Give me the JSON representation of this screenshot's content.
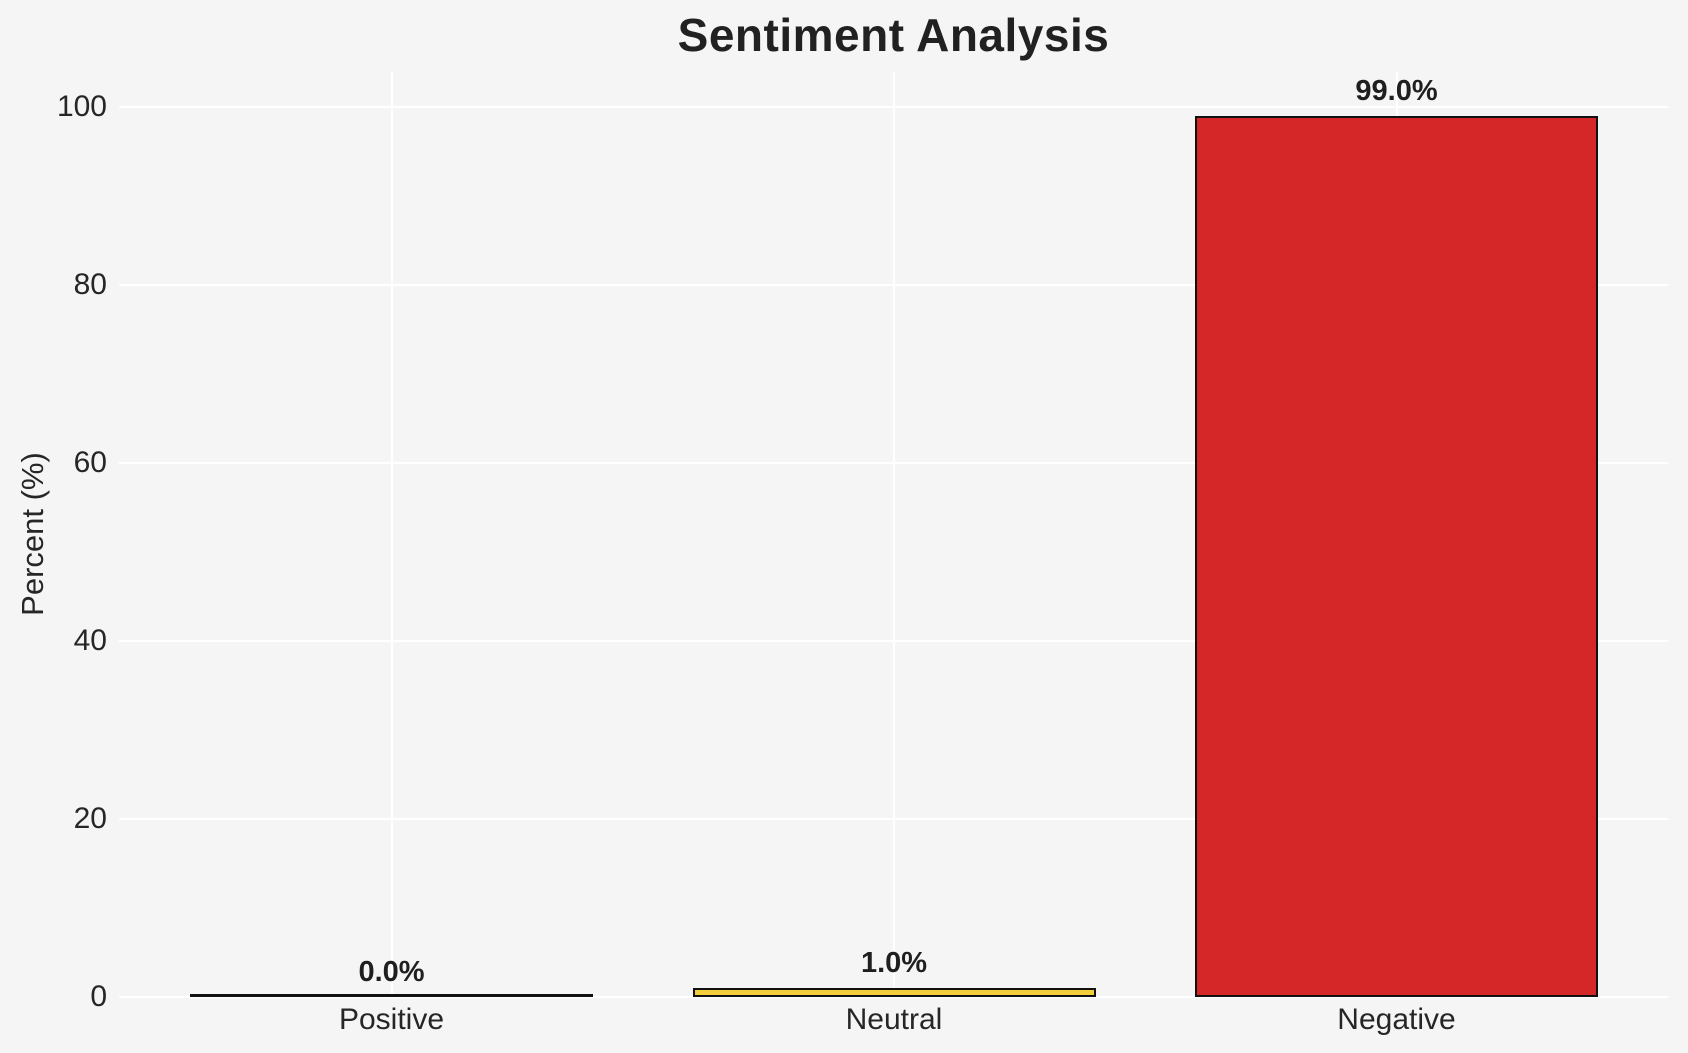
{
  "chart_data": {
    "type": "bar",
    "title": "Sentiment Analysis",
    "ylabel": "Percent (%)",
    "xlabel": "",
    "categories": [
      "Positive",
      "Neutral",
      "Negative"
    ],
    "values": [
      0.0,
      1.0,
      99.0
    ],
    "value_labels": [
      "0.0%",
      "1.0%",
      "99.0%"
    ],
    "bar_colors": [
      "#2ca02c",
      "#f3ce3a",
      "#d62728"
    ],
    "bar_edge_color": "#111111",
    "yticks": [
      0,
      20,
      40,
      60,
      80,
      100
    ],
    "ylim": [
      0,
      103.95
    ],
    "grid": true,
    "legend": false,
    "background_color": "#f5f5f5",
    "gridline_color": "#ffffff"
  }
}
